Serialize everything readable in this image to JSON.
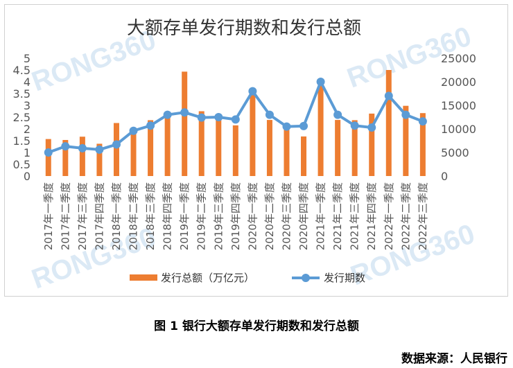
{
  "caption": "图 1  银行大额存单发行期数和发行总额",
  "source": "数据来源：人民银行",
  "watermark": "RONG360",
  "chart_data": {
    "type": "bar+line",
    "title": "大额存单发行期数和发行总额",
    "categories": [
      "2017年一季度",
      "2017年二季度",
      "2017年三季度",
      "2017年四季度",
      "2018年一季度",
      "2018年二季度",
      "2018年三季度",
      "2018年四季度",
      "2019年一季度",
      "2019年二季度",
      "2019年三季度",
      "2019年四季度",
      "2020年一季度",
      "2020年二季度",
      "2020年三季度",
      "2020年四季度",
      "2021年一季度",
      "2021年二季度",
      "2021年三季度",
      "2021年四季度",
      "2022年一季度",
      "2022年二季度",
      "2022年三季度"
    ],
    "series": [
      {
        "name": "发行总额（万亿元）",
        "type": "bar",
        "axis": "left",
        "color": "#ed7d31",
        "values": [
          1.57,
          1.53,
          1.67,
          1.37,
          2.25,
          1.93,
          2.37,
          2.62,
          4.43,
          2.75,
          2.45,
          2.15,
          3.55,
          2.38,
          1.98,
          1.68,
          3.87,
          2.38,
          2.37,
          2.65,
          4.5,
          2.98,
          2.67
        ]
      },
      {
        "name": "发行期数",
        "type": "line",
        "axis": "right",
        "color": "#5b9bd5",
        "values": [
          5000,
          6300,
          5900,
          5600,
          6700,
          9600,
          10700,
          13000,
          13500,
          12400,
          12500,
          12000,
          18000,
          13000,
          10500,
          10600,
          20000,
          13000,
          10700,
          10300,
          17000,
          13000,
          11600
        ]
      }
    ],
    "y_left": {
      "min": 0,
      "max": 5,
      "ticks": [
        "0",
        "0.5",
        "1",
        "1.5",
        "2",
        "2.5",
        "3",
        "3.5",
        "4",
        "4.5",
        "5"
      ]
    },
    "y_right": {
      "min": 0,
      "max": 25000,
      "ticks": [
        "0",
        "5000",
        "10000",
        "15000",
        "20000",
        "25000"
      ]
    },
    "legend_position": "bottom",
    "grid": false
  }
}
